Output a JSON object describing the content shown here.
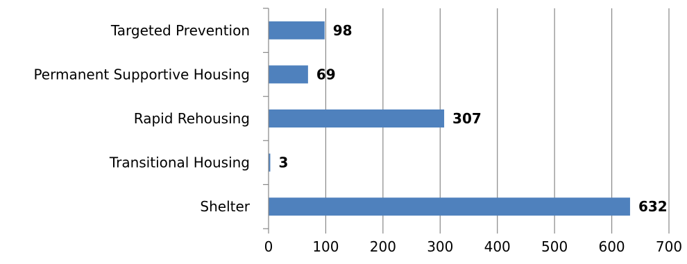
{
  "chart_data": {
    "type": "bar",
    "orientation": "horizontal",
    "categories": [
      "Targeted Prevention",
      "Permanent Supportive Housing",
      "Rapid Rehousing",
      "Transitional Housing",
      "Shelter"
    ],
    "values": [
      98,
      69,
      307,
      3,
      632
    ],
    "xlim": [
      0,
      700
    ],
    "x_ticks": [
      "0",
      "100",
      "200",
      "300",
      "400",
      "500",
      "600",
      "700"
    ],
    "title": "",
    "xlabel": "",
    "ylabel": "",
    "grid": "vertical",
    "legend": "none",
    "bar_color": "#4f81bd",
    "data_labels": true
  }
}
